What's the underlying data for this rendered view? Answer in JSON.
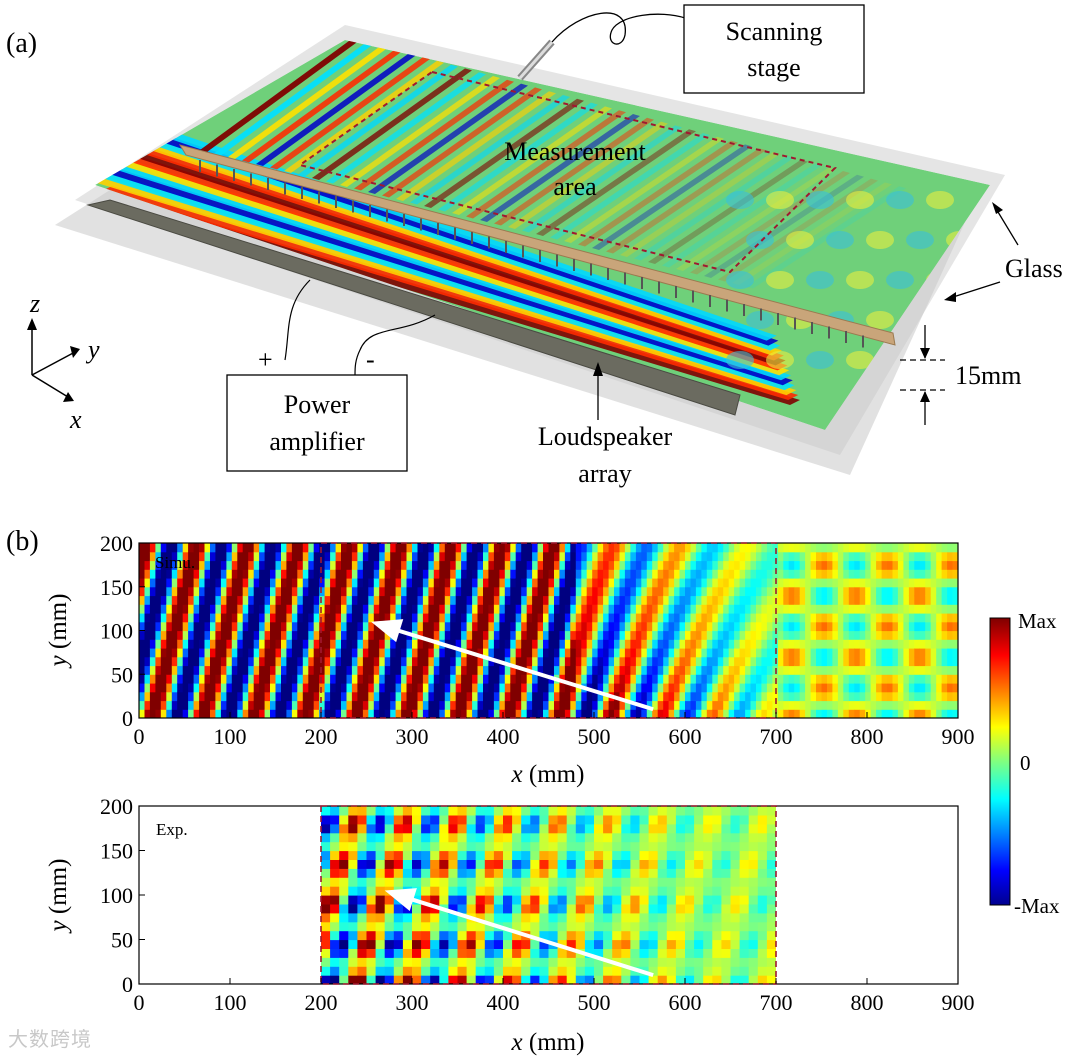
{
  "panel_a": {
    "label": "(a)",
    "scanning_stage": [
      "Scanning",
      "stage"
    ],
    "measurement_area": [
      "Measurement",
      "area"
    ],
    "glass": "Glass",
    "gap": "15mm",
    "power_amplifier": [
      "Power",
      "amplifier"
    ],
    "loudspeaker_array": [
      "Loudspeaker",
      "array"
    ],
    "plus": "+",
    "minus": "-",
    "axes": {
      "z": "z",
      "y": "y",
      "x": "x"
    }
  },
  "panel_b": {
    "label": "(b)",
    "colorbar": {
      "max": "Max",
      "zero": "0",
      "min": "-Max"
    }
  },
  "chart_data": [
    {
      "type": "heatmap",
      "tag": "Simu.",
      "xlabel_var": "x",
      "xlabel_unit": " (mm)",
      "ylabel_var": "y",
      "ylabel_unit": " (mm)",
      "xlim": [
        0,
        900
      ],
      "ylim": [
        0,
        200
      ],
      "xticks": [
        "0",
        "100",
        "200",
        "300",
        "400",
        "500",
        "600",
        "700",
        "800",
        "900"
      ],
      "yticks": [
        "0",
        "50",
        "100",
        "150",
        "200"
      ],
      "measurement_box_x": [
        200,
        700
      ],
      "arrow": {
        "from": [
          565,
          10
        ],
        "to": [
          255,
          110
        ]
      },
      "colormap": [
        "#00008f",
        "#0000ff",
        "#00ffff",
        "#ffff00",
        "#ff0000",
        "#7f0000"
      ]
    },
    {
      "type": "heatmap",
      "tag": "Exp.",
      "xlabel_var": "x",
      "xlabel_unit": " (mm)",
      "ylabel_var": "y",
      "ylabel_unit": " (mm)",
      "xlim": [
        0,
        900
      ],
      "ylim": [
        0,
        200
      ],
      "xticks": [
        "0",
        "100",
        "200",
        "300",
        "400",
        "500",
        "600",
        "700",
        "800",
        "900"
      ],
      "yticks": [
        "0",
        "50",
        "100",
        "150",
        "200"
      ],
      "data_x_range": [
        200,
        700
      ],
      "arrow": {
        "from": [
          565,
          10
        ],
        "to": [
          270,
          105
        ]
      }
    }
  ],
  "watermark": "大数跨境"
}
